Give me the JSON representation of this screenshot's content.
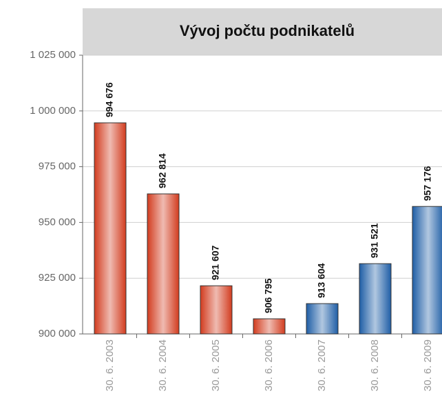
{
  "chart_data": {
    "type": "bar",
    "title": "Vývoj počtu podnikatelů",
    "categories": [
      "30. 6. 2003",
      "30. 6. 2004",
      "30. 6. 2005",
      "30. 6. 2006",
      "30. 6. 2007",
      "30. 6. 2008",
      "30. 6. 2009"
    ],
    "values": [
      994676,
      962814,
      921607,
      906795,
      913604,
      931521,
      957176
    ],
    "value_labels": [
      "994 676",
      "962 814",
      "921 607",
      "906 795",
      "913 604",
      "931 521",
      "957 176"
    ],
    "colors": [
      "#d23c1f",
      "#d23c1f",
      "#d23c1f",
      "#d23c1f",
      "#1f5ea6",
      "#1f5ea6",
      "#1f5ea6"
    ],
    "ylim": [
      900000,
      1025000
    ],
    "yticks": [
      {
        "value": 900000,
        "label": "900 000"
      },
      {
        "value": 925000,
        "label": "925 000"
      },
      {
        "value": 950000,
        "label": "950 000"
      },
      {
        "value": 975000,
        "label": "975 000"
      },
      {
        "value": 1000000,
        "label": "1 000 000"
      },
      {
        "value": 1025000,
        "label": "1 025 000"
      }
    ],
    "grid": true
  }
}
